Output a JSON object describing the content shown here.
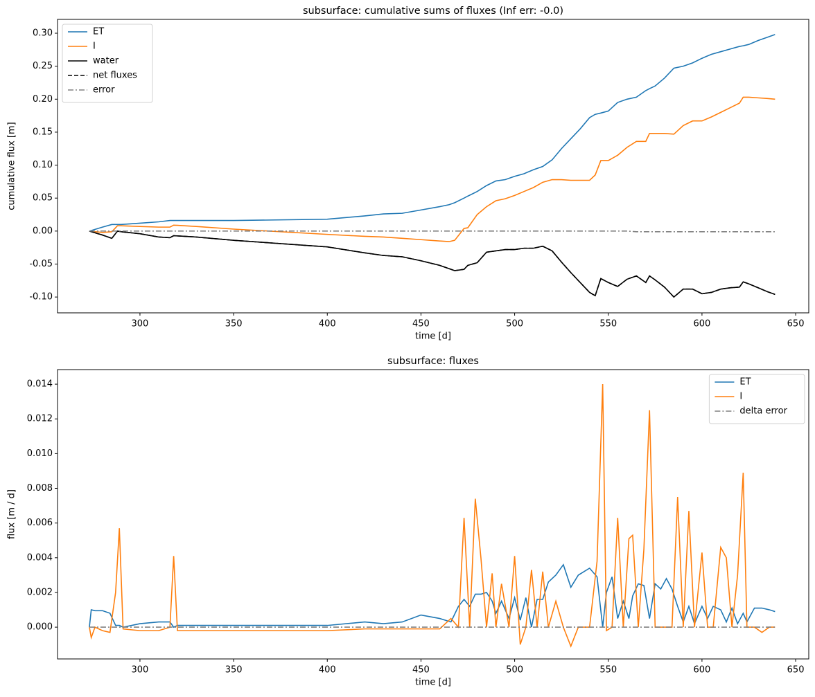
{
  "chart_data": [
    {
      "type": "line",
      "title": "subsurface: cumulative sums of fluxes (Inf err: -0.0)",
      "xlabel": "time [d]",
      "ylabel": "cumulative flux [m]",
      "legend": "upper left",
      "x": [
        273,
        280,
        285,
        288,
        290,
        300,
        310,
        316,
        318,
        330,
        350,
        400,
        420,
        430,
        440,
        450,
        460,
        465,
        468,
        473,
        475,
        480,
        485,
        490,
        495,
        500,
        505,
        510,
        515,
        520,
        525,
        530,
        535,
        540,
        543,
        546,
        550,
        555,
        560,
        565,
        570,
        572,
        575,
        580,
        585,
        590,
        595,
        600,
        605,
        610,
        615,
        620,
        622,
        625,
        630,
        635,
        639
      ],
      "series": [
        {
          "name": "ET",
          "color": "#1f77b4",
          "linestyle": "solid",
          "values": [
            0,
            0.006,
            0.01,
            0.01,
            0.01,
            0.012,
            0.014,
            0.016,
            0.016,
            0.016,
            0.016,
            0.018,
            0.023,
            0.026,
            0.027,
            0.032,
            0.037,
            0.04,
            0.043,
            0.05,
            0.053,
            0.06,
            0.069,
            0.076,
            0.078,
            0.083,
            0.087,
            0.093,
            0.098,
            0.108,
            0.125,
            0.14,
            0.155,
            0.172,
            0.177,
            0.179,
            0.182,
            0.195,
            0.2,
            0.203,
            0.213,
            0.216,
            0.22,
            0.232,
            0.247,
            0.25,
            0.255,
            0.262,
            0.268,
            0.272,
            0.276,
            0.28,
            0.281,
            0.283,
            0.289,
            0.294,
            0.298
          ]
        },
        {
          "name": "I",
          "color": "#ff7f0e",
          "linestyle": "solid",
          "values": [
            0,
            -0.002,
            -0.001,
            0.008,
            0.008,
            0.007,
            0.006,
            0.006,
            0.009,
            0.007,
            0.003,
            -0.005,
            -0.008,
            -0.009,
            -0.011,
            -0.013,
            -0.015,
            -0.016,
            -0.014,
            0.004,
            0.005,
            0.025,
            0.037,
            0.046,
            0.049,
            0.054,
            0.06,
            0.066,
            0.074,
            0.078,
            0.078,
            0.077,
            0.077,
            0.077,
            0.085,
            0.107,
            0.107,
            0.115,
            0.127,
            0.136,
            0.136,
            0.148,
            0.148,
            0.148,
            0.147,
            0.16,
            0.167,
            0.167,
            0.173,
            0.18,
            0.187,
            0.194,
            0.203,
            0.203,
            0.202,
            0.201,
            0.2
          ]
        },
        {
          "name": "water",
          "color": "#000000",
          "linestyle": "solid",
          "values": [
            0,
            -0.006,
            -0.011,
            0,
            -0.001,
            -0.004,
            -0.009,
            -0.01,
            -0.007,
            -0.009,
            -0.014,
            -0.024,
            -0.033,
            -0.037,
            -0.039,
            -0.045,
            -0.052,
            -0.057,
            -0.06,
            -0.058,
            -0.052,
            -0.048,
            -0.032,
            -0.03,
            -0.028,
            -0.028,
            -0.026,
            -0.026,
            -0.023,
            -0.03,
            -0.047,
            -0.063,
            -0.078,
            -0.093,
            -0.098,
            -0.072,
            -0.078,
            -0.084,
            -0.073,
            -0.068,
            -0.078,
            -0.068,
            -0.074,
            -0.085,
            -0.1,
            -0.088,
            -0.088,
            -0.095,
            -0.093,
            -0.088,
            -0.086,
            -0.085,
            -0.077,
            -0.08,
            -0.086,
            -0.092,
            -0.096
          ]
        },
        {
          "name": "net fluxes",
          "color": "#000000",
          "linestyle": "dashed",
          "values": [
            0,
            -0.006,
            -0.011,
            0,
            -0.001,
            -0.004,
            -0.009,
            -0.01,
            -0.007,
            -0.009,
            -0.014,
            -0.024,
            -0.033,
            -0.037,
            -0.039,
            -0.045,
            -0.052,
            -0.057,
            -0.06,
            -0.058,
            -0.052,
            -0.048,
            -0.032,
            -0.03,
            -0.028,
            -0.028,
            -0.026,
            -0.026,
            -0.023,
            -0.03,
            -0.047,
            -0.063,
            -0.078,
            -0.093,
            -0.098,
            -0.072,
            -0.078,
            -0.084,
            -0.073,
            -0.068,
            -0.078,
            -0.068,
            -0.074,
            -0.085,
            -0.1,
            -0.088,
            -0.088,
            -0.095,
            -0.093,
            -0.088,
            -0.086,
            -0.085,
            -0.077,
            -0.08,
            -0.086,
            -0.092,
            -0.096
          ]
        },
        {
          "name": "error",
          "color": "#808080",
          "linestyle": "dashdot",
          "values": [
            0,
            0,
            0,
            0,
            0,
            0,
            0,
            0,
            0,
            0,
            0,
            0,
            0,
            0,
            0,
            0,
            0,
            0,
            0,
            0,
            0,
            0,
            0,
            0,
            0,
            0,
            0,
            0,
            0,
            0,
            0,
            0,
            0,
            0,
            0,
            0,
            0,
            0,
            0,
            -0.001,
            -0.001,
            -0.001,
            -0.001,
            -0.001,
            -0.001,
            -0.001,
            -0.001,
            -0.001,
            -0.001,
            -0.001,
            -0.001,
            -0.001,
            -0.001,
            -0.001,
            -0.001,
            -0.001,
            -0.001
          ]
        }
      ],
      "xlim": [
        256,
        657
      ],
      "xticks": [
        300,
        350,
        400,
        450,
        500,
        550,
        600,
        650
      ],
      "ylim": [
        -0.124,
        0.321
      ],
      "yticks": [
        {
          "value": -0.1,
          "label": "-0.10"
        },
        -0.05,
        {
          "value": 0,
          "label": "0.00"
        },
        0.05,
        {
          "value": 0.1,
          "label": "0.10"
        },
        0.15,
        {
          "value": 0.2,
          "label": "0.20"
        },
        0.25,
        {
          "value": 0.3,
          "label": "0.30"
        }
      ]
    },
    {
      "type": "line",
      "title": "subsurface: fluxes",
      "xlabel": "time [d]",
      "ylabel": "flux [m / d]",
      "legend": "upper right",
      "x": [
        273,
        274,
        276,
        280,
        284,
        287,
        289,
        291,
        300,
        310,
        316,
        318,
        320,
        350,
        400,
        420,
        430,
        440,
        450,
        460,
        466,
        470,
        473,
        476,
        479,
        482,
        485,
        488,
        490,
        493,
        497,
        500,
        503,
        506,
        509,
        512,
        515,
        518,
        522,
        526,
        530,
        534,
        540,
        544,
        547,
        549,
        552,
        555,
        558,
        561,
        563,
        566,
        569,
        572,
        575,
        578,
        581,
        584,
        587,
        590,
        593,
        596,
        600,
        603,
        606,
        610,
        613,
        616,
        619,
        622,
        624,
        628,
        632,
        636,
        639
      ],
      "series": [
        {
          "name": "ET",
          "color": "#1f77b4",
          "linestyle": "solid",
          "values": [
            0,
            0.001,
            0.00095,
            0.00095,
            0.0008,
            0.0001,
            0.0001,
            0,
            0.0002,
            0.0003,
            0.0003,
            0,
            0.0001,
            0.0001,
            0.0001,
            0.0003,
            0.0002,
            0.0003,
            0.0007,
            0.0005,
            0.0003,
            0.0012,
            0.0016,
            0.0012,
            0.0019,
            0.0019,
            0.002,
            0.0015,
            0.0008,
            0.0015,
            0.0005,
            0.0017,
            0.0004,
            0.0017,
            0,
            0.0016,
            0.0016,
            0.0026,
            0.003,
            0.0036,
            0.0023,
            0.003,
            0.0034,
            0.0029,
            0,
            0.002,
            0.0029,
            0.0005,
            0.0015,
            0.0005,
            0.0018,
            0.0025,
            0.0024,
            0.0005,
            0.0025,
            0.0022,
            0.0028,
            0.0022,
            0.0012,
            0.0003,
            0.0012,
            0.0002,
            0.0012,
            0.0005,
            0.0012,
            0.001,
            0.0003,
            0.0011,
            0.0002,
            0.0008,
            0.0003,
            0.0011,
            0.0011,
            0.001,
            0.0009
          ]
        },
        {
          "name": "I",
          "color": "#ff7f0e",
          "linestyle": "solid",
          "values": [
            0,
            -0.0006,
            0,
            -0.0002,
            -0.0003,
            0.002,
            0.0057,
            -0.0001,
            -0.0002,
            -0.0002,
            0,
            0.0041,
            -0.0002,
            -0.0002,
            -0.0002,
            -0.0001,
            -0.0001,
            -0.0001,
            -0.0001,
            -0.0001,
            0.0005,
            0,
            0.0063,
            0,
            0.0074,
            0.004,
            0,
            0.0031,
            0,
            0.0025,
            0,
            0.0041,
            -0.001,
            0,
            0.0033,
            0,
            0.0032,
            0,
            0.0015,
            0,
            -0.0011,
            0,
            0,
            0.0038,
            0.014,
            -0.0002,
            0,
            0.0063,
            0,
            0.0051,
            0.0053,
            0,
            0.0045,
            0.0125,
            0,
            0,
            0,
            0,
            0.0075,
            0,
            0.0067,
            0,
            0.0043,
            0,
            0,
            0.0046,
            0.004,
            0,
            0.003,
            0.0089,
            0,
            0,
            -0.0003,
            0,
            0
          ]
        },
        {
          "name": "delta error",
          "color": "#808080",
          "linestyle": "dashdot",
          "values": [
            0,
            0,
            0,
            0,
            0,
            0,
            0,
            0,
            0,
            0,
            0,
            0,
            0,
            0,
            0,
            0,
            0,
            0,
            0,
            0,
            0,
            0,
            0,
            0,
            0,
            0,
            0,
            0,
            0,
            0,
            0,
            0,
            0,
            0,
            0,
            0,
            0,
            0,
            0,
            0,
            0,
            0,
            0,
            0,
            0,
            0,
            0,
            0,
            0,
            0,
            0,
            0,
            0,
            0,
            0,
            0,
            0,
            0,
            0,
            0,
            0,
            0,
            0,
            0,
            0,
            0,
            0,
            0,
            0,
            0,
            0,
            0,
            0,
            0,
            0
          ]
        }
      ],
      "xlim": [
        256,
        657
      ],
      "xticks": [
        300,
        350,
        400,
        450,
        500,
        550,
        600,
        650
      ],
      "ylim": [
        -0.00183,
        0.01484
      ],
      "yticks": [
        {
          "value": 0,
          "label": "0.000"
        },
        0.002,
        0.004,
        0.006,
        0.008,
        {
          "value": 0.01,
          "label": "0.010"
        },
        0.012,
        0.014
      ]
    }
  ]
}
